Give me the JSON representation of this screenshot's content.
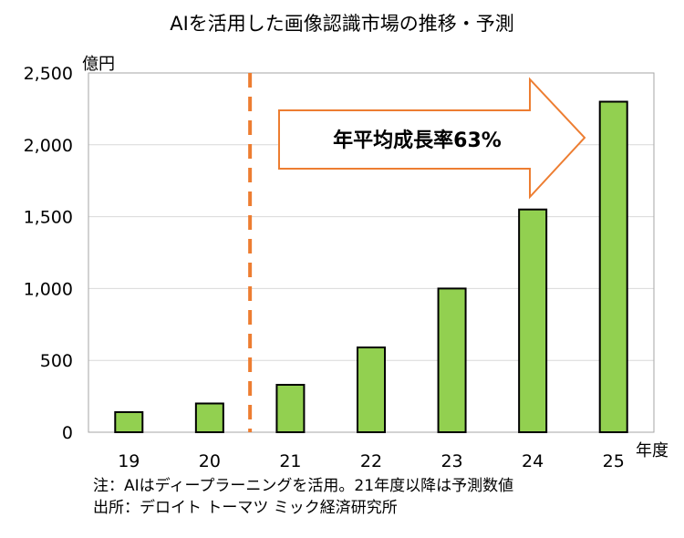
{
  "chart_data": {
    "type": "bar",
    "title": "AIを活用した画像認識市場の推移・予測",
    "ylabel": "億円",
    "xlabel": "年度",
    "categories": [
      "19",
      "20",
      "21",
      "22",
      "23",
      "24",
      "25"
    ],
    "values": [
      140,
      200,
      330,
      590,
      1000,
      1550,
      2300
    ],
    "ylim": [
      0,
      2500
    ],
    "yticks": [
      "0",
      "500",
      "1,000",
      "1,500",
      "2,000",
      "2,500"
    ],
    "ytick_values": [
      0,
      500,
      1000,
      1500,
      2000,
      2500
    ],
    "grid": true,
    "bar_color": "#92d050",
    "forecast_divider_after": "20",
    "divider_color": "#ed7d31",
    "annotation": "年平均成長率63%",
    "arrow_color": "#ed7d31"
  },
  "notes": {
    "line1": "注：AIはディープラーニングを活用。21年度以降は予測数値",
    "line2": "出所：デロイト トーマツ ミック経済研究所"
  }
}
